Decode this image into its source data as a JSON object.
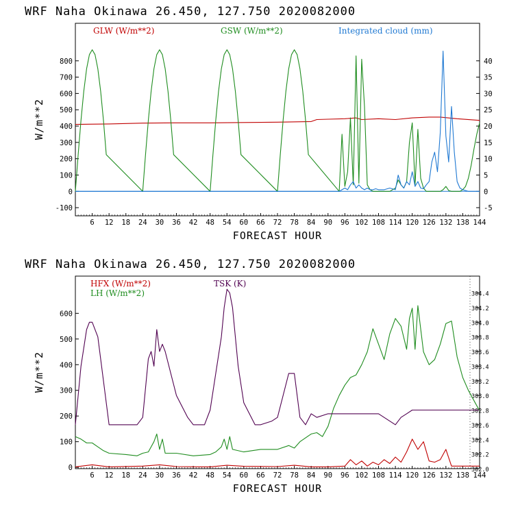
{
  "chart_data": [
    {
      "type": "line",
      "title": "WRF   Naha Okinawa   26.450, 127.750   2020082000",
      "xlabel": "FORECAST HOUR",
      "ylabel": "W/m**2",
      "xlim": [
        0,
        144
      ],
      "xticks": [
        6,
        12,
        18,
        24,
        30,
        36,
        42,
        48,
        54,
        60,
        66,
        72,
        78,
        84,
        90,
        96,
        102,
        108,
        114,
        120,
        126,
        132,
        138,
        144
      ],
      "ylim_left": [
        -150,
        1030
      ],
      "yticks_left": [
        -100,
        0,
        100,
        200,
        300,
        400,
        500,
        600,
        700,
        800
      ],
      "ylim_right": [
        -7.5,
        51.5
      ],
      "yticks_right": [
        -5,
        0,
        5,
        10,
        15,
        20,
        25,
        30,
        35,
        40
      ],
      "series": [
        {
          "name": "GLW (W/m**2)",
          "color": "#c00000",
          "axis": "left",
          "x": [
            0,
            12,
            24,
            36,
            48,
            60,
            72,
            84,
            86,
            90,
            96,
            100,
            102,
            108,
            114,
            120,
            126,
            130,
            136,
            144
          ],
          "values": [
            410,
            413,
            418,
            420,
            420,
            422,
            424,
            428,
            440,
            442,
            445,
            450,
            440,
            445,
            440,
            450,
            455,
            455,
            445,
            435
          ]
        },
        {
          "name": "GSW (W/m**2)",
          "color": "#1e8c1e",
          "axis": "left",
          "x": [
            0,
            1,
            2,
            3,
            4,
            5,
            6,
            7,
            8,
            9,
            10,
            11,
            24,
            25,
            26,
            27,
            28,
            29,
            30,
            31,
            32,
            33,
            34,
            35,
            48,
            49,
            50,
            51,
            52,
            53,
            54,
            55,
            56,
            57,
            58,
            59,
            72,
            73,
            74,
            75,
            76,
            77,
            78,
            79,
            80,
            81,
            82,
            83,
            94,
            95,
            96,
            97,
            98,
            99,
            100,
            101,
            102,
            103,
            104,
            105,
            106,
            112,
            114,
            115,
            116,
            117,
            118,
            119,
            120,
            121,
            122,
            123,
            124,
            125,
            130,
            131,
            132,
            133,
            134,
            135,
            136,
            137,
            138,
            139,
            140,
            141,
            142,
            143,
            144
          ],
          "values": [
            0,
            225,
            435,
            614,
            751,
            838,
            868,
            838,
            751,
            614,
            435,
            225,
            0,
            225,
            435,
            614,
            751,
            838,
            868,
            838,
            751,
            614,
            435,
            225,
            0,
            225,
            435,
            614,
            751,
            838,
            868,
            838,
            751,
            614,
            435,
            225,
            0,
            225,
            435,
            614,
            751,
            838,
            868,
            838,
            751,
            614,
            435,
            225,
            0,
            350,
            30,
            120,
            450,
            40,
            830,
            50,
            810,
            520,
            40,
            10,
            0,
            0,
            20,
            70,
            40,
            20,
            60,
            300,
            420,
            40,
            380,
            80,
            20,
            0,
            0,
            10,
            30,
            5,
            0,
            0,
            0,
            0,
            10,
            30,
            80,
            160,
            260,
            350,
            420
          ]
        },
        {
          "name": "Integrated cloud (mm)",
          "color": "#1e78d2",
          "axis": "right",
          "x": [
            0,
            92,
            94,
            95,
            96,
            97,
            98,
            99,
            100,
            101,
            102,
            103,
            104,
            105,
            106,
            107,
            108,
            110,
            112,
            114,
            115,
            116,
            117,
            118,
            119,
            120,
            121,
            122,
            123,
            124,
            125,
            126,
            127,
            128,
            129,
            130,
            131,
            132,
            133,
            134,
            135,
            136,
            137,
            138,
            140,
            144
          ],
          "values": [
            0,
            0,
            0,
            0.5,
            1,
            0.5,
            2,
            3,
            1,
            2,
            1,
            0.5,
            1,
            0.5,
            0.5,
            0.8,
            0.5,
            0.5,
            1,
            0.5,
            5,
            2,
            1,
            3,
            2,
            6,
            1.5,
            3,
            1,
            0.8,
            2,
            3,
            9,
            12,
            6,
            18,
            43,
            17,
            9,
            26,
            12,
            3,
            1,
            0.5,
            0,
            0
          ]
        }
      ],
      "legend": "top"
    },
    {
      "type": "line",
      "title": "WRF   Naha Okinawa   26.450, 127.750   2020082000",
      "xlabel": "FORECAST HOUR",
      "ylabel": "W/m**2",
      "xlim": [
        0,
        144
      ],
      "xticks": [
        6,
        12,
        18,
        24,
        30,
        36,
        42,
        48,
        54,
        60,
        66,
        72,
        78,
        84,
        90,
        96,
        102,
        108,
        114,
        120,
        126,
        132,
        138,
        144
      ],
      "ylim_left": [
        -5,
        745
      ],
      "yticks_left": [
        0,
        100,
        200,
        300,
        400,
        500,
        600
      ],
      "ylim_right": [
        302.0,
        304.63
      ],
      "yticks_right": [
        "302.0",
        "302.2",
        "302.4",
        "302.6",
        "302.8",
        "303.0",
        "303.2",
        "303.4",
        "303.6",
        "303.8",
        "304.0",
        "304.2",
        "304.4"
      ],
      "series": [
        {
          "name": "HFX (W/m**2)",
          "color": "#c00000",
          "axis": "left",
          "x": [
            0,
            6,
            12,
            24,
            30,
            36,
            48,
            54,
            60,
            72,
            78,
            84,
            90,
            96,
            98,
            100,
            102,
            104,
            106,
            108,
            110,
            112,
            114,
            116,
            118,
            120,
            122,
            124,
            126,
            128,
            130,
            132,
            134,
            136,
            144
          ],
          "values": [
            2,
            10,
            2,
            5,
            10,
            3,
            2,
            8,
            4,
            3,
            8,
            2,
            2,
            5,
            30,
            10,
            25,
            5,
            20,
            10,
            30,
            15,
            40,
            20,
            60,
            110,
            70,
            100,
            25,
            20,
            30,
            70,
            5,
            5,
            5
          ]
        },
        {
          "name": "LH  (W/m**2)",
          "color": "#1e8c1e",
          "axis": "left",
          "x": [
            0,
            2,
            4,
            6,
            8,
            10,
            12,
            18,
            22,
            24,
            26,
            28,
            29,
            30,
            31,
            32,
            36,
            42,
            48,
            50,
            52,
            53,
            54,
            55,
            56,
            60,
            66,
            72,
            76,
            78,
            80,
            84,
            86,
            88,
            90,
            92,
            94,
            96,
            98,
            100,
            102,
            104,
            106,
            108,
            110,
            112,
            114,
            116,
            118,
            119,
            120,
            121,
            122,
            124,
            126,
            128,
            130,
            132,
            134,
            136,
            138,
            140,
            142,
            144
          ],
          "values": [
            120,
            110,
            95,
            95,
            80,
            65,
            55,
            50,
            45,
            55,
            60,
            100,
            130,
            70,
            110,
            55,
            55,
            45,
            50,
            60,
            80,
            110,
            70,
            120,
            70,
            60,
            70,
            70,
            85,
            75,
            100,
            130,
            135,
            120,
            160,
            230,
            280,
            320,
            350,
            360,
            400,
            450,
            540,
            480,
            420,
            520,
            580,
            550,
            460,
            580,
            620,
            460,
            630,
            450,
            400,
            420,
            480,
            560,
            570,
            430,
            350,
            300,
            260,
            220
          ]
        },
        {
          "name": "TSK (K)",
          "color": "#500050",
          "axis": "right",
          "x": [
            0,
            2,
            4,
            5,
            6,
            8,
            10,
            12,
            18,
            22,
            24,
            26,
            27,
            28,
            29,
            30,
            31,
            32,
            34,
            36,
            40,
            42,
            46,
            48,
            50,
            52,
            53,
            54,
            55,
            56,
            58,
            60,
            64,
            66,
            70,
            72,
            74,
            76,
            78,
            80,
            82,
            84,
            86,
            90,
            96,
            108,
            114,
            116,
            118,
            120,
            126,
            132,
            144
          ],
          "values": [
            302.6,
            303.4,
            303.9,
            304.0,
            304.0,
            303.8,
            303.2,
            302.6,
            302.6,
            302.6,
            302.7,
            303.5,
            303.6,
            303.4,
            303.9,
            303.6,
            303.7,
            303.6,
            303.3,
            303.0,
            302.7,
            302.6,
            302.6,
            302.8,
            303.3,
            303.8,
            304.2,
            304.45,
            304.4,
            304.2,
            303.4,
            302.9,
            302.6,
            302.6,
            302.65,
            302.7,
            303.0,
            303.3,
            303.3,
            302.7,
            302.6,
            302.75,
            302.7,
            302.75,
            302.75,
            302.75,
            302.6,
            302.7,
            302.75,
            302.8,
            302.8,
            302.8,
            302.8
          ]
        }
      ],
      "legend": "top-left"
    }
  ]
}
